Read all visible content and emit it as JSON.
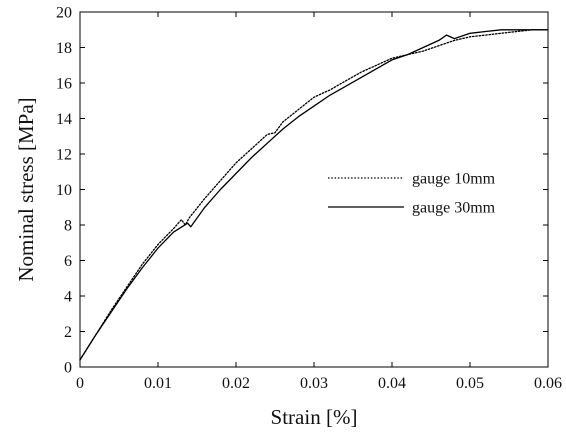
{
  "chart_data": {
    "type": "line",
    "title": "",
    "xlabel": "Strain [%]",
    "ylabel": "Nominal stress [MPa]",
    "xlim": [
      0,
      0.06
    ],
    "ylim": [
      0,
      20
    ],
    "x_ticks": [
      0,
      0.01,
      0.02,
      0.03,
      0.04,
      0.05,
      0.06
    ],
    "x_tick_labels": [
      "0",
      "0.01",
      "0.02",
      "0.03",
      "0.04",
      "0.05",
      "0.06"
    ],
    "y_ticks": [
      0,
      2,
      4,
      6,
      8,
      10,
      12,
      14,
      16,
      18,
      20
    ],
    "y_tick_labels": [
      "0",
      "2",
      "4",
      "6",
      "8",
      "10",
      "12",
      "14",
      "16",
      "18",
      "20"
    ],
    "grid": false,
    "legend": "center-right",
    "series": [
      {
        "name": "gauge 10mm",
        "style": "dotted",
        "color": "#000000",
        "x": [
          0,
          0.002,
          0.004,
          0.006,
          0.008,
          0.01,
          0.012,
          0.013,
          0.0135,
          0.014,
          0.016,
          0.018,
          0.02,
          0.022,
          0.024,
          0.025,
          0.026,
          0.028,
          0.03,
          0.032,
          0.034,
          0.036,
          0.038,
          0.04,
          0.042,
          0.044,
          0.046,
          0.048,
          0.05,
          0.052,
          0.054,
          0.056,
          0.058,
          0.06
        ],
        "y": [
          0.4,
          1.8,
          3.2,
          4.5,
          5.8,
          6.9,
          7.8,
          8.3,
          8.0,
          8.4,
          9.5,
          10.5,
          11.5,
          12.3,
          13.1,
          13.2,
          13.8,
          14.5,
          15.2,
          15.6,
          16.1,
          16.6,
          17.0,
          17.4,
          17.6,
          17.8,
          18.1,
          18.4,
          18.6,
          18.7,
          18.8,
          18.9,
          19.0,
          19.0
        ]
      },
      {
        "name": "gauge 30mm",
        "style": "solid",
        "color": "#000000",
        "x": [
          0,
          0.002,
          0.004,
          0.006,
          0.008,
          0.01,
          0.012,
          0.0138,
          0.0142,
          0.016,
          0.018,
          0.02,
          0.022,
          0.024,
          0.026,
          0.028,
          0.03,
          0.032,
          0.034,
          0.036,
          0.038,
          0.04,
          0.042,
          0.044,
          0.046,
          0.047,
          0.048,
          0.05,
          0.052,
          0.054,
          0.056,
          0.058,
          0.06
        ],
        "y": [
          0.4,
          1.8,
          3.1,
          4.4,
          5.6,
          6.7,
          7.6,
          8.1,
          7.9,
          9.0,
          10.0,
          10.9,
          11.8,
          12.6,
          13.4,
          14.1,
          14.7,
          15.3,
          15.8,
          16.3,
          16.8,
          17.3,
          17.6,
          18.0,
          18.4,
          18.7,
          18.5,
          18.8,
          18.9,
          19.0,
          19.0,
          19.0,
          19.0
        ]
      }
    ]
  }
}
